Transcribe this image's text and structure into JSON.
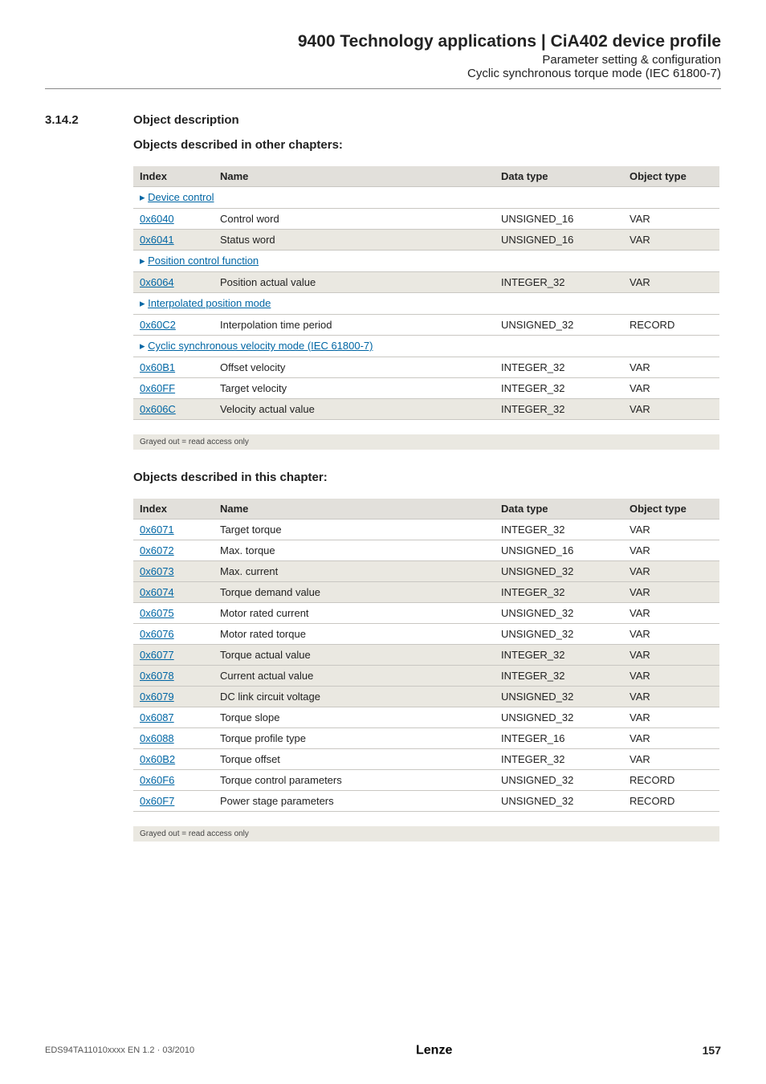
{
  "header": {
    "title": "9400 Technology applications | CiA402 device profile",
    "sub1": "Parameter setting & configuration",
    "sub2": "Cyclic synchronous torque mode (IEC 61800-7)"
  },
  "section": {
    "number": "3.14.2",
    "title": "Object description"
  },
  "tables": {
    "other_heading": "Objects described in other chapters:",
    "this_heading": "Objects described in this chapter:",
    "columns": {
      "index": "Index",
      "name": "Name",
      "data_type": "Data type",
      "object_type": "Object type"
    },
    "other": [
      {
        "group": "Device control"
      },
      {
        "idx": "0x6040",
        "name": "Control word",
        "dt": "UNSIGNED_16",
        "ot": "VAR",
        "ro": false
      },
      {
        "idx": "0x6041",
        "name": "Status word",
        "dt": "UNSIGNED_16",
        "ot": "VAR",
        "ro": true
      },
      {
        "group": "Position control function"
      },
      {
        "idx": "0x6064",
        "name": "Position actual value",
        "dt": "INTEGER_32",
        "ot": "VAR",
        "ro": true
      },
      {
        "group": "Interpolated position mode"
      },
      {
        "idx": "0x60C2",
        "name": "Interpolation time period",
        "dt": "UNSIGNED_32",
        "ot": "RECORD",
        "ro": false
      },
      {
        "group": "Cyclic synchronous velocity mode (IEC 61800-7)"
      },
      {
        "idx": "0x60B1",
        "name": "Offset velocity",
        "dt": "INTEGER_32",
        "ot": "VAR",
        "ro": false
      },
      {
        "idx": "0x60FF",
        "name": "Target velocity",
        "dt": "INTEGER_32",
        "ot": "VAR",
        "ro": false
      },
      {
        "idx": "0x606C",
        "name": "Velocity actual value",
        "dt": "INTEGER_32",
        "ot": "VAR",
        "ro": true
      }
    ],
    "this": [
      {
        "idx": "0x6071",
        "name": "Target torque",
        "dt": "INTEGER_32",
        "ot": "VAR",
        "ro": false
      },
      {
        "idx": "0x6072",
        "name": "Max. torque",
        "dt": "UNSIGNED_16",
        "ot": "VAR",
        "ro": false
      },
      {
        "idx": "0x6073",
        "name": "Max. current",
        "dt": "UNSIGNED_32",
        "ot": "VAR",
        "ro": true
      },
      {
        "idx": "0x6074",
        "name": "Torque demand value",
        "dt": "INTEGER_32",
        "ot": "VAR",
        "ro": true
      },
      {
        "idx": "0x6075",
        "name": "Motor rated current",
        "dt": "UNSIGNED_32",
        "ot": "VAR",
        "ro": false
      },
      {
        "idx": "0x6076",
        "name": "Motor rated torque",
        "dt": "UNSIGNED_32",
        "ot": "VAR",
        "ro": false
      },
      {
        "idx": "0x6077",
        "name": "Torque actual value",
        "dt": "INTEGER_32",
        "ot": "VAR",
        "ro": true
      },
      {
        "idx": "0x6078",
        "name": "Current actual value",
        "dt": "INTEGER_32",
        "ot": "VAR",
        "ro": true
      },
      {
        "idx": "0x6079",
        "name": "DC link circuit voltage",
        "dt": "UNSIGNED_32",
        "ot": "VAR",
        "ro": true
      },
      {
        "idx": "0x6087",
        "name": "Torque slope",
        "dt": "UNSIGNED_32",
        "ot": "VAR",
        "ro": false
      },
      {
        "idx": "0x6088",
        "name": "Torque profile type",
        "dt": "INTEGER_16",
        "ot": "VAR",
        "ro": false
      },
      {
        "idx": "0x60B2",
        "name": "Torque offset",
        "dt": "INTEGER_32",
        "ot": "VAR",
        "ro": false
      },
      {
        "idx": "0x60F6",
        "name": "Torque control parameters",
        "dt": "UNSIGNED_32",
        "ot": "RECORD",
        "ro": false
      },
      {
        "idx": "0x60F7",
        "name": "Power stage parameters",
        "dt": "UNSIGNED_32",
        "ot": "RECORD",
        "ro": false
      }
    ],
    "footnote": "Grayed out = read access only"
  },
  "footer": {
    "doc_id": "EDS94TA11010xxxx EN 1.2 · 03/2010",
    "logo_text": "Lenze",
    "page": "157"
  }
}
